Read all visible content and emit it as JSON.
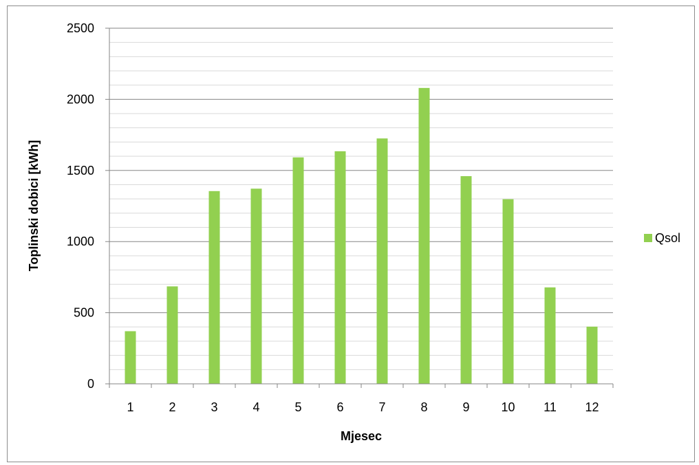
{
  "chart_data": {
    "type": "bar",
    "title": "",
    "xlabel": "Mjesec",
    "ylabel": "Toplinski dobici [kWh]",
    "categories": [
      "1",
      "2",
      "3",
      "4",
      "5",
      "6",
      "7",
      "8",
      "9",
      "10",
      "11",
      "12"
    ],
    "series": [
      {
        "name": "Qsol",
        "color": "#92d050",
        "values": [
          370,
          685,
          1355,
          1372,
          1592,
          1635,
          1725,
          2080,
          1460,
          1298,
          678,
          402
        ]
      }
    ],
    "ylim": [
      0,
      2500
    ],
    "yticks": [
      "0",
      "500",
      "1000",
      "1500",
      "2000",
      "2500"
    ],
    "major_tick_step": 500,
    "minor_gridline_step": 100,
    "grid": true,
    "legend_position": "right"
  }
}
